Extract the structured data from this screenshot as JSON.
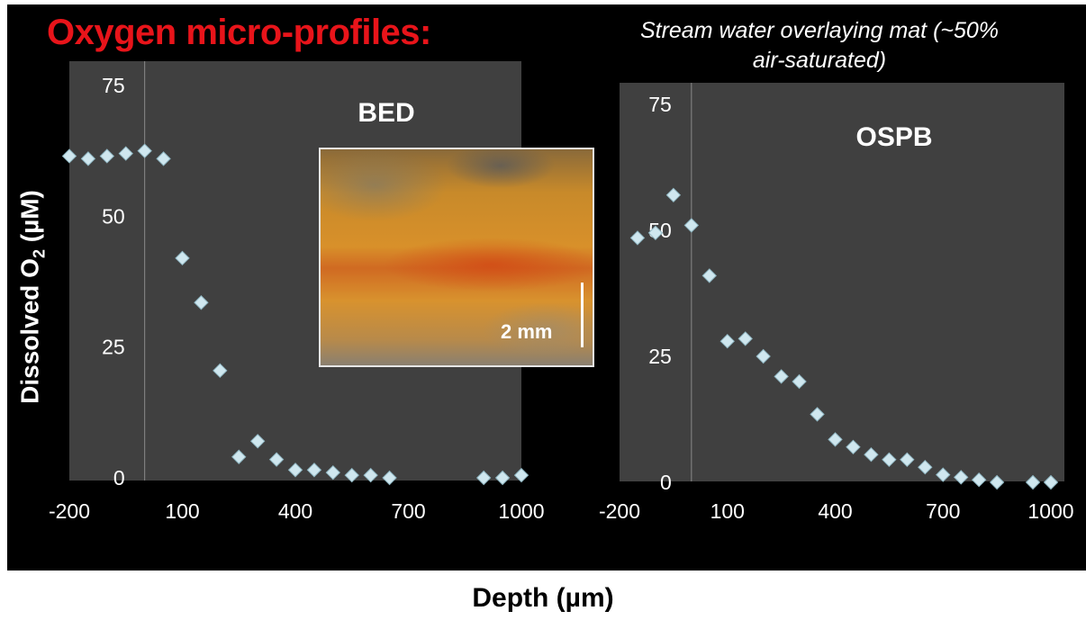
{
  "title": "Oxygen micro-profiles:",
  "annotation": "Stream water overlaying mat (~50% air-saturated)",
  "ylabel_prefix": "Dissolved O",
  "ylabel_sub": "2",
  "ylabel_suffix": " (µM)",
  "xlabel": "Depth (µm)",
  "photo": {
    "scale_label": "2 mm"
  },
  "colors": {
    "background": "#000000",
    "plot_area": "#404040",
    "title": "#e8141a",
    "marker": "#cfe7ef",
    "text": "#ffffff"
  },
  "chart_data": [
    {
      "type": "scatter",
      "title": "BED",
      "xlim": [
        -200,
        1000
      ],
      "ylim": [
        0,
        80
      ],
      "xticks": [
        -200,
        100,
        400,
        700,
        1000
      ],
      "yticks": [
        0,
        25,
        50,
        75
      ],
      "grid": false,
      "x": [
        -200,
        -150,
        -100,
        -50,
        0,
        50,
        100,
        150,
        200,
        250,
        300,
        350,
        400,
        450,
        500,
        550,
        600,
        650,
        900,
        950,
        1000
      ],
      "y": [
        61.5,
        61,
        61.5,
        62,
        62.5,
        61,
        42,
        33.5,
        20.5,
        4,
        7,
        3.5,
        1.5,
        1.5,
        1,
        0.5,
        0.5,
        0,
        0,
        0,
        0.5
      ]
    },
    {
      "type": "scatter",
      "title": "OSPB",
      "xlim": [
        -200,
        1000
      ],
      "ylim": [
        0,
        80
      ],
      "xticks": [
        -200,
        100,
        400,
        700,
        1000
      ],
      "yticks": [
        0,
        25,
        50,
        75
      ],
      "grid": false,
      "x": [
        -150,
        -100,
        -50,
        0,
        50,
        100,
        150,
        200,
        250,
        300,
        350,
        400,
        450,
        500,
        550,
        600,
        650,
        700,
        750,
        800,
        850,
        950,
        1000
      ],
      "y": [
        48.5,
        49.5,
        57,
        51,
        41,
        28,
        28.5,
        25,
        21,
        20,
        13.5,
        8.5,
        7,
        5.5,
        4.5,
        4.5,
        3,
        1.5,
        1,
        0.5,
        0,
        0,
        0
      ]
    }
  ]
}
